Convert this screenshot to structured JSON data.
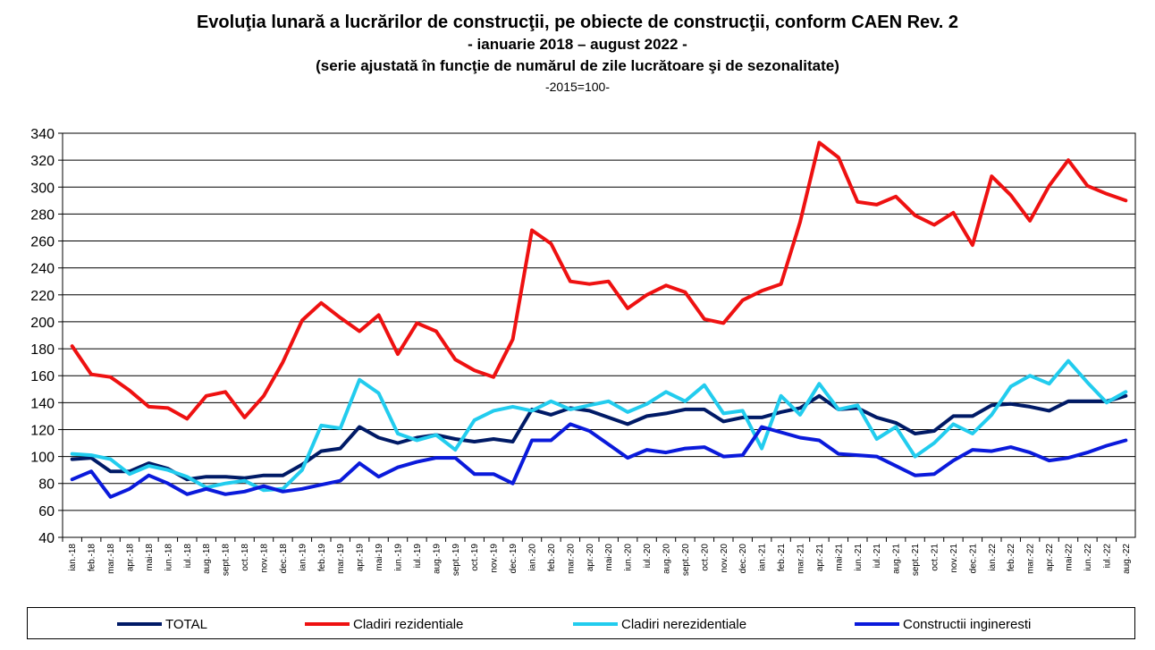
{
  "title": "Evoluţia lunară a lucrărilor de construcţii, pe obiecte de construcţii, conform CAEN Rev. 2",
  "subtitle": "- ianuarie 2018 – august 2022 -",
  "subtitle2": "(serie ajustată în funcţie de numărul de zile lucrătoare şi de sezonalitate)",
  "base_note": "-2015=100-",
  "chart_data": {
    "type": "line",
    "ylim": [
      40,
      340
    ],
    "yticks": [
      40,
      60,
      80,
      100,
      120,
      140,
      160,
      180,
      200,
      220,
      240,
      260,
      280,
      300,
      320,
      340
    ],
    "grid": true,
    "legend_position": "bottom",
    "x": [
      "ian.-18",
      "feb.-18",
      "mar.-18",
      "apr.-18",
      "mai-18",
      "iun.-18",
      "iul.-18",
      "aug.-18",
      "sept.-18",
      "oct.-18",
      "nov.-18",
      "dec.-18",
      "ian.-19",
      "feb.-19",
      "mar.-19",
      "apr.-19",
      "mai-19",
      "iun.-19",
      "iul.-19",
      "aug.-19",
      "sept.-19",
      "oct.-19",
      "nov.-19",
      "dec.-19",
      "ian.-20",
      "feb.-20",
      "mar.-20",
      "apr.-20",
      "mai-20",
      "iun.-20",
      "iul.-20",
      "aug.-20",
      "sept.-20",
      "oct.-20",
      "nov.-20",
      "dec.-20",
      "ian.-21",
      "feb.-21",
      "mar.-21",
      "apr.-21",
      "mai-21",
      "iun.-21",
      "iul.-21",
      "aug.-21",
      "sept.-21",
      "oct.-21",
      "nov.-21",
      "dec.-21",
      "ian.-22",
      "feb.-22",
      "mar.-22",
      "apr.-22",
      "mai-22",
      "iun.-22",
      "iul.-22",
      "aug.-22"
    ],
    "series": [
      {
        "name": "TOTAL",
        "color": "#001a66",
        "values": [
          98,
          99,
          89,
          89,
          95,
          91,
          83,
          85,
          85,
          84,
          86,
          86,
          94,
          104,
          106,
          122,
          114,
          110,
          114,
          116,
          113,
          111,
          113,
          111,
          135,
          131,
          136,
          134,
          129,
          124,
          130,
          132,
          135,
          135,
          126,
          129,
          129,
          133,
          136,
          145,
          135,
          136,
          129,
          125,
          117,
          119,
          130,
          130,
          138,
          139,
          137,
          134,
          141,
          141,
          141,
          145
        ]
      },
      {
        "name": "Cladiri rezidentiale",
        "color": "#ee1111",
        "values": [
          182,
          161,
          159,
          149,
          137,
          136,
          128,
          145,
          148,
          129,
          145,
          170,
          201,
          214,
          203,
          193,
          205,
          176,
          199,
          193,
          172,
          164,
          159,
          187,
          268,
          258,
          230,
          228,
          230,
          210,
          220,
          227,
          222,
          202,
          199,
          216,
          223,
          228,
          274,
          333,
          322,
          289,
          287,
          293,
          279,
          272,
          281,
          257,
          308,
          294,
          275,
          301,
          320,
          301,
          295,
          290
        ]
      },
      {
        "name": "Cladiri nerezidentiale",
        "color": "#22ccee",
        "values": [
          102,
          101,
          98,
          87,
          93,
          90,
          85,
          77,
          80,
          82,
          75,
          76,
          90,
          123,
          121,
          157,
          147,
          117,
          112,
          116,
          105,
          127,
          134,
          137,
          134,
          141,
          135,
          138,
          141,
          133,
          139,
          148,
          141,
          153,
          132,
          134,
          106,
          145,
          131,
          154,
          135,
          138,
          113,
          122,
          100,
          110,
          124,
          117,
          131,
          152,
          160,
          154,
          171,
          155,
          140,
          148
        ]
      },
      {
        "name": "Constructii ingineresti",
        "color": "#0a1adb",
        "values": [
          83,
          89,
          70,
          76,
          86,
          80,
          72,
          76,
          72,
          74,
          78,
          74,
          76,
          79,
          82,
          95,
          85,
          92,
          96,
          99,
          99,
          87,
          87,
          80,
          112,
          112,
          124,
          119,
          109,
          99,
          105,
          103,
          106,
          107,
          100,
          101,
          122,
          118,
          114,
          112,
          102,
          101,
          100,
          93,
          86,
          87,
          97,
          105,
          104,
          107,
          103,
          97,
          99,
          103,
          108,
          112
        ]
      }
    ]
  }
}
